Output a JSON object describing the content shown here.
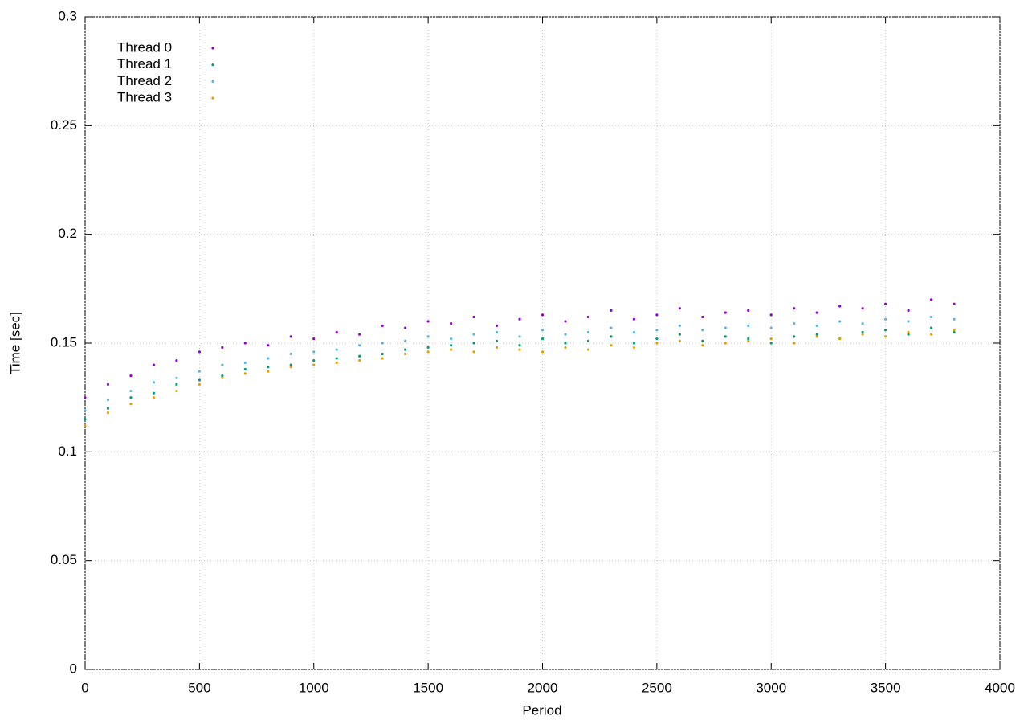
{
  "chart_data": {
    "type": "scatter",
    "x_label": "Period",
    "y_label": "Time [sec]",
    "x": [
      0,
      100,
      200,
      300,
      400,
      500,
      600,
      700,
      800,
      900,
      1000,
      1100,
      1200,
      1300,
      1400,
      1500,
      1600,
      1700,
      1800,
      1900,
      2000,
      2100,
      2200,
      2300,
      2400,
      2500,
      2600,
      2700,
      2800,
      2900,
      3000,
      3100,
      3200,
      3300,
      3400,
      3500,
      3600,
      3700,
      3800
    ],
    "series": [
      {
        "name": "Thread 0",
        "color": "#9400d3",
        "values": [
          0.125,
          0.131,
          0.135,
          0.14,
          0.142,
          0.146,
          0.148,
          0.15,
          0.149,
          0.153,
          0.152,
          0.155,
          0.154,
          0.158,
          0.157,
          0.16,
          0.159,
          0.162,
          0.158,
          0.161,
          0.163,
          0.16,
          0.162,
          0.165,
          0.161,
          0.163,
          0.166,
          0.162,
          0.164,
          0.165,
          0.163,
          0.166,
          0.164,
          0.167,
          0.166,
          0.168,
          0.165,
          0.17,
          0.168
        ]
      },
      {
        "name": "Thread 1",
        "color": "#009e73",
        "values": [
          0.115,
          0.12,
          0.125,
          0.127,
          0.131,
          0.133,
          0.135,
          0.138,
          0.139,
          0.14,
          0.142,
          0.143,
          0.144,
          0.145,
          0.147,
          0.148,
          0.149,
          0.15,
          0.151,
          0.149,
          0.152,
          0.15,
          0.151,
          0.153,
          0.15,
          0.152,
          0.154,
          0.151,
          0.153,
          0.152,
          0.15,
          0.153,
          0.154,
          0.152,
          0.155,
          0.156,
          0.154,
          0.157,
          0.155
        ]
      },
      {
        "name": "Thread 2",
        "color": "#56b4e9",
        "values": [
          0.119,
          0.124,
          0.128,
          0.132,
          0.134,
          0.137,
          0.14,
          0.141,
          0.143,
          0.145,
          0.146,
          0.147,
          0.149,
          0.15,
          0.151,
          0.153,
          0.152,
          0.154,
          0.155,
          0.153,
          0.156,
          0.154,
          0.155,
          0.157,
          0.155,
          0.156,
          0.158,
          0.156,
          0.157,
          0.158,
          0.157,
          0.159,
          0.158,
          0.16,
          0.159,
          0.161,
          0.16,
          0.162,
          0.161
        ]
      },
      {
        "name": "Thread 3",
        "color": "#e69f00",
        "values": [
          0.112,
          0.118,
          0.122,
          0.125,
          0.128,
          0.131,
          0.134,
          0.136,
          0.137,
          0.139,
          0.14,
          0.141,
          0.142,
          0.143,
          0.145,
          0.146,
          0.147,
          0.146,
          0.148,
          0.147,
          0.146,
          0.148,
          0.147,
          0.149,
          0.148,
          0.15,
          0.151,
          0.149,
          0.15,
          0.151,
          0.152,
          0.15,
          0.153,
          0.152,
          0.154,
          0.153,
          0.155,
          0.154,
          0.156
        ]
      }
    ],
    "xlim": [
      0,
      4000
    ],
    "xticks": [
      0,
      500,
      1000,
      1500,
      2000,
      2500,
      3000,
      3500,
      4000
    ],
    "ylim": [
      0,
      0.3
    ],
    "yticks": [
      0,
      0.05,
      0.1,
      0.15,
      0.2,
      0.25,
      0.3
    ],
    "grid": true,
    "legend": "top-left"
  }
}
